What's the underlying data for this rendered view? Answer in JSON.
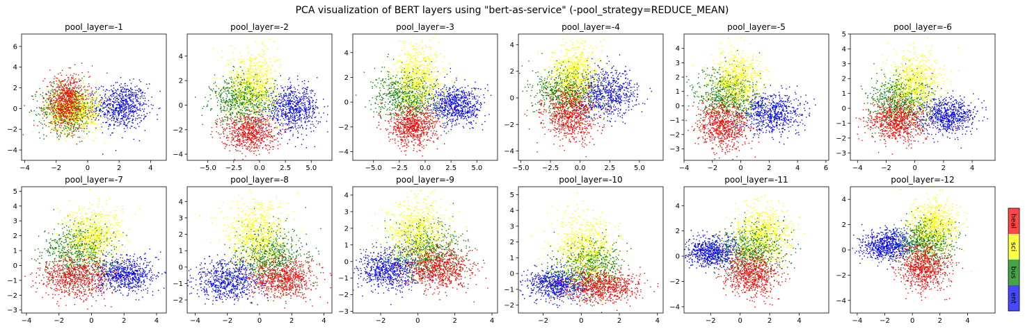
{
  "figure": {
    "title": "PCA visualization of BERT layers using \"bert-as-service\" (-pool_strategy=REDUCE_MEAN)"
  },
  "legend": {
    "categories": [
      {
        "label": "ent",
        "color": "#0000ff"
      },
      {
        "label": "bus",
        "color": "#008000"
      },
      {
        "label": "sci",
        "color": "#ffff00"
      },
      {
        "label": "heal",
        "color": "#ff0000"
      }
    ]
  },
  "chart_data": [
    {
      "type": "scatter",
      "title": "pool_layer=-1",
      "xlim": [
        -4.2,
        5.0
      ],
      "ylim": [
        -5.0,
        7.2
      ],
      "xticks": [
        -4,
        -2,
        0,
        2,
        4
      ],
      "yticks": [
        -4,
        -2,
        0,
        2,
        4,
        6
      ],
      "series": [
        {
          "color": "#0000ff",
          "center": [
            2.2,
            0.2
          ],
          "spread": [
            0.8,
            1.1
          ],
          "rot": 0.0
        },
        {
          "color": "#008000",
          "center": [
            -1.2,
            0.0
          ],
          "spread": [
            0.9,
            1.2
          ],
          "rot": 0.0
        },
        {
          "color": "#ffff00",
          "center": [
            -0.8,
            -0.2
          ],
          "spread": [
            0.9,
            1.1
          ],
          "rot": 0.0
        },
        {
          "color": "#ff0000",
          "center": [
            -1.3,
            0.6
          ],
          "spread": [
            0.7,
            1.3
          ],
          "rot": 0.0
        }
      ]
    },
    {
      "type": "scatter",
      "title": "pool_layer=-2",
      "xlim": [
        -7.0,
        7.0
      ],
      "ylim": [
        -4.5,
        5.8
      ],
      "xticks": [
        -5.0,
        -2.5,
        0.0,
        2.5,
        5.0
      ],
      "yticks": [
        -4,
        -2,
        0,
        2,
        4
      ],
      "series": [
        {
          "color": "#0000ff",
          "center": [
            3.2,
            -0.3
          ],
          "spread": [
            1.3,
            0.9
          ],
          "rot": 0.0
        },
        {
          "color": "#008000",
          "center": [
            -1.6,
            0.4
          ],
          "spread": [
            1.5,
            1.0
          ],
          "rot": 0.0
        },
        {
          "color": "#ffff00",
          "center": [
            -0.6,
            1.8
          ],
          "spread": [
            1.2,
            1.3
          ],
          "rot": 0.0
        },
        {
          "color": "#ff0000",
          "center": [
            -1.0,
            -2.2
          ],
          "spread": [
            1.3,
            0.8
          ],
          "rot": 0.0
        }
      ]
    },
    {
      "type": "scatter",
      "title": "pool_layer=-3",
      "xlim": [
        -7.0,
        7.0
      ],
      "ylim": [
        -4.7,
        5.5
      ],
      "xticks": [
        -5.0,
        -2.5,
        0.0,
        2.5,
        5.0
      ],
      "yticks": [
        -4,
        -2,
        0,
        2,
        4
      ],
      "series": [
        {
          "color": "#0000ff",
          "center": [
            3.0,
            -0.3
          ],
          "spread": [
            1.3,
            0.8
          ],
          "rot": 0.0
        },
        {
          "color": "#008000",
          "center": [
            -1.8,
            0.5
          ],
          "spread": [
            1.5,
            1.0
          ],
          "rot": 0.0
        },
        {
          "color": "#ffff00",
          "center": [
            -0.6,
            2.0
          ],
          "spread": [
            1.2,
            1.3
          ],
          "rot": 0.0
        },
        {
          "color": "#ff0000",
          "center": [
            -1.2,
            -2.0
          ],
          "spread": [
            1.2,
            0.8
          ],
          "rot": 0.0
        }
      ]
    },
    {
      "type": "scatter",
      "title": "pool_layer=-4",
      "xlim": [
        -5.2,
        7.0
      ],
      "ylim": [
        -4.7,
        4.8
      ],
      "xticks": [
        -5.0,
        -2.5,
        0.0,
        2.5,
        5.0
      ],
      "yticks": [
        -4,
        -2,
        0,
        2,
        4
      ],
      "series": [
        {
          "color": "#0000ff",
          "center": [
            2.3,
            0.3
          ],
          "spread": [
            1.3,
            0.9
          ],
          "rot": 0.0
        },
        {
          "color": "#008000",
          "center": [
            -1.2,
            0.4
          ],
          "spread": [
            1.3,
            1.0
          ],
          "rot": 0.0
        },
        {
          "color": "#ffff00",
          "center": [
            -0.4,
            1.8
          ],
          "spread": [
            1.0,
            1.1
          ],
          "rot": 0.0
        },
        {
          "color": "#ff0000",
          "center": [
            -0.8,
            -1.3
          ],
          "spread": [
            1.1,
            1.0
          ],
          "rot": 0.0
        }
      ]
    },
    {
      "type": "scatter",
      "title": "pool_layer=-5",
      "xlim": [
        -4.0,
        6.2
      ],
      "ylim": [
        -3.8,
        5.0
      ],
      "xticks": [
        -4,
        -2,
        0,
        2,
        4,
        6
      ],
      "yticks": [
        -3,
        -2,
        -1,
        0,
        1,
        2,
        3,
        4
      ],
      "series": [
        {
          "color": "#0000ff",
          "center": [
            2.2,
            -0.5
          ],
          "spread": [
            1.1,
            0.7
          ],
          "rot": 0.0
        },
        {
          "color": "#008000",
          "center": [
            -1.0,
            0.6
          ],
          "spread": [
            1.1,
            1.0
          ],
          "rot": 0.0
        },
        {
          "color": "#ffff00",
          "center": [
            -0.2,
            1.8
          ],
          "spread": [
            0.9,
            1.0
          ],
          "rot": 0.0
        },
        {
          "color": "#ff0000",
          "center": [
            -1.2,
            -1.4
          ],
          "spread": [
            0.9,
            0.8
          ],
          "rot": 0.0
        }
      ]
    },
    {
      "type": "scatter",
      "title": "pool_layer=-6",
      "xlim": [
        -4.5,
        5.6
      ],
      "ylim": [
        -3.5,
        5.0
      ],
      "xticks": [
        -4,
        -2,
        0,
        2,
        4
      ],
      "yticks": [
        -3,
        -2,
        -1,
        0,
        1,
        2,
        3,
        4,
        5
      ],
      "series": [
        {
          "color": "#0000ff",
          "center": [
            2.2,
            -0.5
          ],
          "spread": [
            1.0,
            0.6
          ],
          "rot": 0.0
        },
        {
          "color": "#008000",
          "center": [
            -1.0,
            0.5
          ],
          "spread": [
            1.1,
            0.9
          ],
          "rot": 0.0
        },
        {
          "color": "#ffff00",
          "center": [
            0.0,
            1.7
          ],
          "spread": [
            0.9,
            1.0
          ],
          "rot": 0.0
        },
        {
          "color": "#ff0000",
          "center": [
            -1.3,
            -0.9
          ],
          "spread": [
            1.0,
            0.7
          ],
          "rot": 0.0
        }
      ]
    },
    {
      "type": "scatter",
      "title": "pool_layer=-7",
      "xlim": [
        -4.3,
        4.6
      ],
      "ylim": [
        -3.2,
        5.3
      ],
      "xticks": [
        -4,
        -2,
        0,
        2,
        4
      ],
      "yticks": [
        -3,
        -2,
        -1,
        0,
        1,
        2,
        3,
        4,
        5
      ],
      "series": [
        {
          "color": "#0000ff",
          "center": [
            2.0,
            -0.6
          ],
          "spread": [
            0.9,
            0.6
          ],
          "rot": 0.0
        },
        {
          "color": "#008000",
          "center": [
            -0.8,
            0.8
          ],
          "spread": [
            1.1,
            1.0
          ],
          "rot": 0.0
        },
        {
          "color": "#ffff00",
          "center": [
            0.0,
            2.0
          ],
          "spread": [
            0.9,
            1.0
          ],
          "rot": 0.0
        },
        {
          "color": "#ff0000",
          "center": [
            -1.0,
            -0.8
          ],
          "spread": [
            1.1,
            0.7
          ],
          "rot": 0.0
        }
      ]
    },
    {
      "type": "scatter",
      "title": "pool_layer=-8",
      "xlim": [
        -4.5,
        4.5
      ],
      "ylim": [
        -2.8,
        4.9
      ],
      "xticks": [
        -4,
        -2,
        0,
        2,
        4
      ],
      "yticks": [
        -2,
        -1,
        0,
        1,
        2,
        3,
        4
      ],
      "series": [
        {
          "color": "#0000ff",
          "center": [
            -2.0,
            -0.8
          ],
          "spread": [
            1.0,
            0.6
          ],
          "rot": 0.0
        },
        {
          "color": "#008000",
          "center": [
            0.7,
            0.6
          ],
          "spread": [
            1.1,
            0.9
          ],
          "rot": 0.0
        },
        {
          "color": "#ffff00",
          "center": [
            -0.2,
            2.0
          ],
          "spread": [
            0.9,
            1.0
          ],
          "rot": 0.0
        },
        {
          "color": "#ff0000",
          "center": [
            1.5,
            -0.7
          ],
          "spread": [
            1.0,
            0.6
          ],
          "rot": 0.0
        }
      ]
    },
    {
      "type": "scatter",
      "title": "pool_layer=-9",
      "xlim": [
        -3.5,
        4.3
      ],
      "ylim": [
        -3.1,
        4.5
      ],
      "xticks": [
        -2,
        0,
        2,
        4
      ],
      "yticks": [
        -3,
        -2,
        -1,
        0,
        1,
        2,
        3,
        4
      ],
      "series": [
        {
          "color": "#0000ff",
          "center": [
            -1.6,
            -0.5
          ],
          "spread": [
            0.8,
            0.6
          ],
          "rot": 0.0
        },
        {
          "color": "#008000",
          "center": [
            0.5,
            0.6
          ],
          "spread": [
            1.0,
            0.9
          ],
          "rot": 0.0
        },
        {
          "color": "#ffff00",
          "center": [
            -0.1,
            1.8
          ],
          "spread": [
            0.8,
            0.9
          ],
          "rot": 0.0
        },
        {
          "color": "#ff0000",
          "center": [
            1.2,
            -0.5
          ],
          "spread": [
            0.9,
            0.6
          ],
          "rot": 0.0
        }
      ]
    },
    {
      "type": "scatter",
      "title": "pool_layer=-10",
      "xlim": [
        -3.3,
        4.3
      ],
      "ylim": [
        -2.5,
        5.5
      ],
      "xticks": [
        -2,
        0,
        2,
        4
      ],
      "yticks": [
        -2,
        -1,
        0,
        1,
        2,
        3,
        4,
        5
      ],
      "series": [
        {
          "color": "#0000ff",
          "center": [
            -1.3,
            -0.7
          ],
          "spread": [
            0.8,
            0.5
          ],
          "rot": 0.0
        },
        {
          "color": "#008000",
          "center": [
            0.4,
            0.4
          ],
          "spread": [
            0.9,
            0.9
          ],
          "rot": 0.0
        },
        {
          "color": "#ffff00",
          "center": [
            0.2,
            1.6
          ],
          "spread": [
            0.8,
            1.1
          ],
          "rot": 0.0
        },
        {
          "color": "#ff0000",
          "center": [
            1.2,
            -0.8
          ],
          "spread": [
            1.0,
            0.5
          ],
          "rot": 0.0
        }
      ]
    },
    {
      "type": "scatter",
      "title": "pool_layer=-11",
      "xlim": [
        -3.8,
        6.0
      ],
      "ylim": [
        -4.5,
        5.5
      ],
      "xticks": [
        -2,
        0,
        2,
        4
      ],
      "yticks": [
        -4,
        -2,
        0,
        2,
        4
      ],
      "series": [
        {
          "color": "#0000ff",
          "center": [
            -2.0,
            0.3
          ],
          "spread": [
            0.9,
            0.6
          ],
          "rot": 0.0
        },
        {
          "color": "#008000",
          "center": [
            0.9,
            0.5
          ],
          "spread": [
            1.1,
            1.0
          ],
          "rot": 0.0
        },
        {
          "color": "#ffff00",
          "center": [
            1.5,
            1.8
          ],
          "spread": [
            1.0,
            1.1
          ],
          "rot": 0.0
        },
        {
          "color": "#ff0000",
          "center": [
            0.8,
            -1.4
          ],
          "spread": [
            0.9,
            0.8
          ],
          "rot": -0.5
        }
      ]
    },
    {
      "type": "scatter",
      "title": "pool_layer=-12",
      "xlim": [
        -4.5,
        6.0
      ],
      "ylim": [
        -5.0,
        5.0
      ],
      "xticks": [
        -4,
        -2,
        0,
        2,
        4
      ],
      "yticks": [
        -4,
        -2,
        0,
        2,
        4
      ],
      "series": [
        {
          "color": "#0000ff",
          "center": [
            -1.8,
            0.4
          ],
          "spread": [
            0.9,
            0.6
          ],
          "rot": 0.0
        },
        {
          "color": "#008000",
          "center": [
            1.0,
            0.6
          ],
          "spread": [
            1.0,
            0.9
          ],
          "rot": 0.0
        },
        {
          "color": "#ffff00",
          "center": [
            1.6,
            1.9
          ],
          "spread": [
            0.9,
            1.0
          ],
          "rot": 0.0
        },
        {
          "color": "#ff0000",
          "center": [
            0.8,
            -1.5
          ],
          "spread": [
            0.9,
            0.8
          ],
          "rot": -0.5
        }
      ]
    }
  ]
}
